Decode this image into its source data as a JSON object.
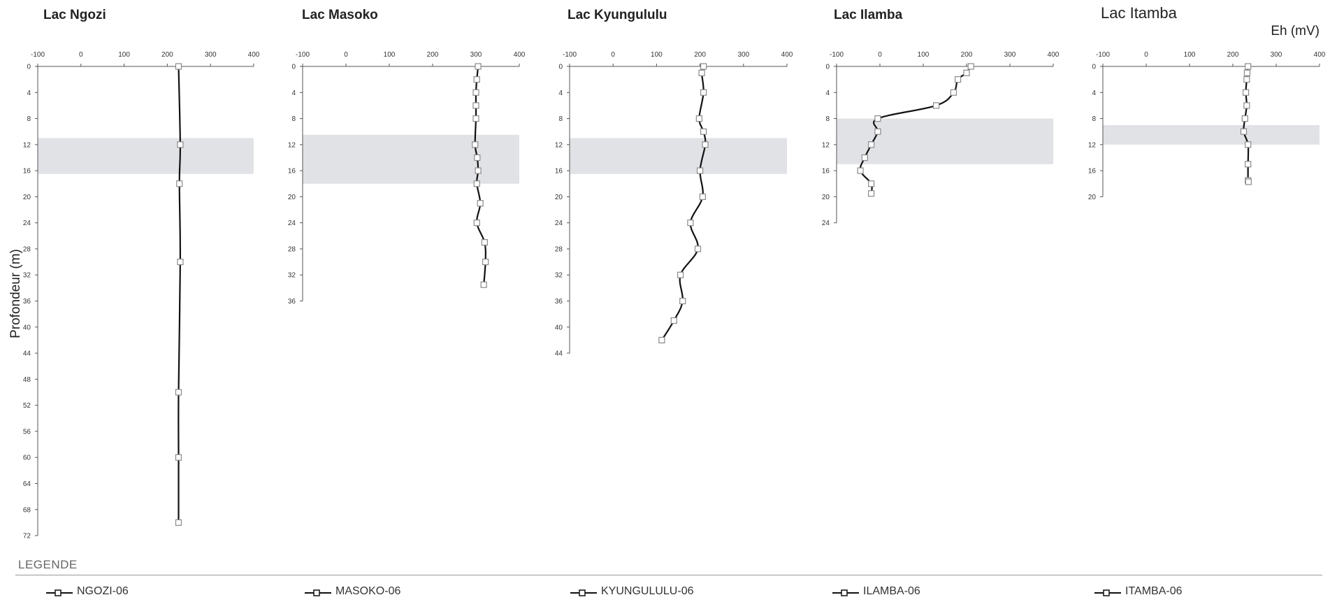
{
  "ylabel": "Profondeur (m)",
  "unit_label": "Eh (mV)",
  "legend": {
    "title": "LEGENDE",
    "items": [
      "NGOZI-06",
      "MASOKO-06",
      "KYUNGULULU-06",
      "ILAMBA-06",
      "ITAMBA-06"
    ]
  },
  "colors": {
    "line": "#111111",
    "marker": "#8a8a8a",
    "band": "#e1e2e6",
    "axis": "#555555"
  },
  "chart_data": [
    {
      "type": "line",
      "title": "Lac Ngozi",
      "xlim": [
        -100,
        400
      ],
      "xticks": [
        -100,
        0,
        100,
        200,
        300,
        400
      ],
      "ylim": [
        0,
        72
      ],
      "yticks": [
        0,
        4,
        8,
        12,
        16,
        20,
        24,
        28,
        32,
        36,
        40,
        44,
        48,
        52,
        56,
        60,
        64,
        68,
        72
      ],
      "shaded_depth": [
        11,
        16.5
      ],
      "series": [
        {
          "name": "NGOZI-06",
          "depth": [
            0,
            12,
            18,
            30,
            50,
            60,
            70
          ],
          "eh": [
            226,
            230,
            228,
            230,
            226,
            226,
            226
          ]
        }
      ]
    },
    {
      "type": "line",
      "title": "Lac Masoko",
      "xlim": [
        -100,
        400
      ],
      "xticks": [
        -100,
        0,
        100,
        200,
        300,
        400
      ],
      "ylim": [
        0,
        36
      ],
      "yticks": [
        0,
        4,
        8,
        12,
        16,
        20,
        24,
        28,
        32,
        36
      ],
      "shaded_depth": [
        10.5,
        18
      ],
      "series": [
        {
          "name": "MASOKO-06",
          "depth": [
            0,
            2,
            4,
            6,
            8,
            12,
            14,
            16,
            18,
            21,
            24,
            27,
            30,
            33.5
          ],
          "eh": [
            305,
            302,
            300,
            300,
            300,
            298,
            303,
            305,
            302,
            310,
            302,
            320,
            322,
            318
          ]
        }
      ]
    },
    {
      "type": "line",
      "title": "Lac Kyungululu",
      "xlim": [
        -100,
        400
      ],
      "xticks": [
        -100,
        0,
        100,
        200,
        300,
        400
      ],
      "ylim": [
        0,
        44
      ],
      "yticks": [
        0,
        4,
        8,
        12,
        16,
        20,
        24,
        28,
        32,
        36,
        40,
        44
      ],
      "shaded_depth": [
        11,
        16.5
      ],
      "series": [
        {
          "name": "KYUNGULULU-06",
          "depth": [
            0,
            1,
            4,
            8,
            10,
            12,
            16,
            20,
            24,
            28,
            32,
            36,
            39,
            42
          ],
          "eh": [
            208,
            204,
            208,
            198,
            208,
            212,
            200,
            206,
            178,
            195,
            155,
            160,
            140,
            112
          ]
        }
      ]
    },
    {
      "type": "line",
      "title": "Lac Ilamba",
      "xlim": [
        -100,
        400
      ],
      "xticks": [
        -100,
        0,
        100,
        200,
        300,
        400
      ],
      "ylim": [
        0,
        24
      ],
      "yticks": [
        0,
        4,
        8,
        12,
        16,
        20,
        24
      ],
      "shaded_depth": [
        8,
        15
      ],
      "series": [
        {
          "name": "ILAMBA-06",
          "depth": [
            0,
            1,
            2,
            4,
            6,
            8,
            10,
            12,
            14,
            16,
            18,
            19.5
          ],
          "eh": [
            210,
            200,
            180,
            170,
            130,
            -5,
            -5,
            -20,
            -35,
            -45,
            -20,
            -20
          ]
        }
      ]
    },
    {
      "type": "line",
      "title": "Lac Itamba",
      "xlim": [
        -100,
        400
      ],
      "xticks": [
        -100,
        0,
        100,
        200,
        300,
        400
      ],
      "ylim": [
        0,
        20
      ],
      "yticks": [
        0,
        4,
        8,
        12,
        16,
        20
      ],
      "shaded_depth": [
        9,
        12
      ],
      "series": [
        {
          "name": "ITAMBA-06",
          "depth": [
            0,
            1,
            2,
            4,
            6,
            8,
            10,
            12,
            15,
            17.5,
            17.7
          ],
          "eh": [
            235,
            233,
            232,
            230,
            232,
            228,
            225,
            235,
            235,
            235,
            236
          ]
        }
      ]
    }
  ]
}
